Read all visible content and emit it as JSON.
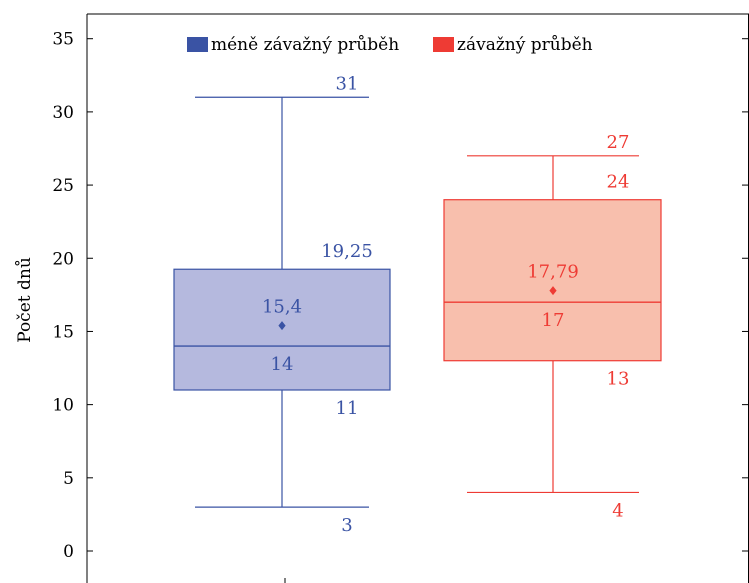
{
  "chart_data": {
    "type": "boxplot",
    "ylabel": "Počet dnů",
    "ylim": [
      -1.5,
      36.5
    ],
    "yticks": [
      "0",
      "5",
      "10",
      "15",
      "20",
      "25",
      "30",
      "35"
    ],
    "ytick_values": [
      0,
      5,
      10,
      15,
      20,
      25,
      30,
      35
    ],
    "legend_position": "top-center",
    "series": [
      {
        "name": "méně závažný průběh",
        "color": "#3a53a4",
        "fill": "#b5b9de",
        "min": 3,
        "q1": 11,
        "median": 14,
        "q3": 19.25,
        "max": 31,
        "mean": 15.4,
        "labels": {
          "max": "31",
          "q3": "19,25",
          "mean": "15,4",
          "median": "14",
          "q1": "11",
          "min": "3"
        }
      },
      {
        "name": "závažný průběh",
        "color": "#ee3b34",
        "fill": "#f8bfad",
        "min": 4,
        "q1": 13,
        "median": 17,
        "q3": 24,
        "max": 27,
        "mean": 17.79,
        "labels": {
          "max": "27",
          "q3": "24",
          "mean": "17,79",
          "median": "17",
          "q1": "13",
          "min": "4"
        }
      }
    ]
  }
}
